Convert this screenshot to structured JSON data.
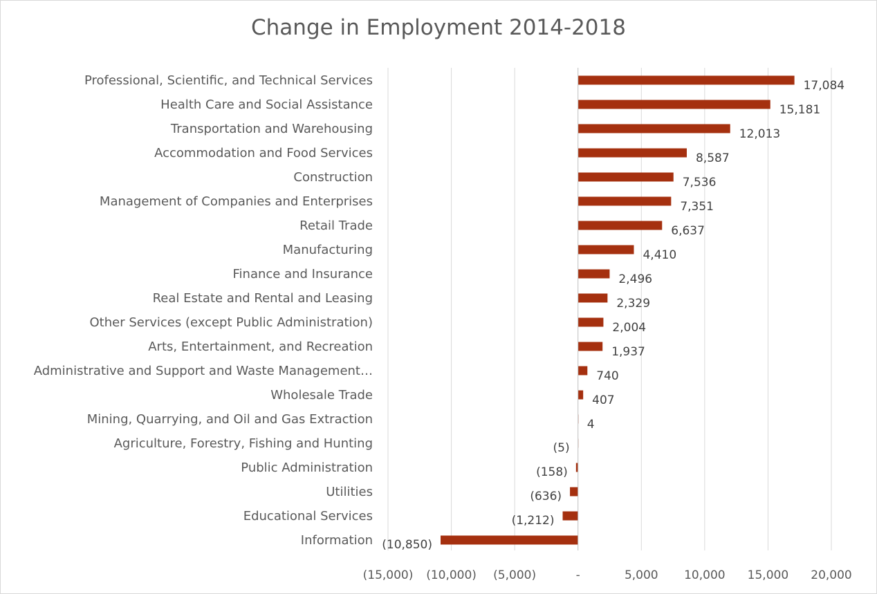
{
  "chart_data": {
    "type": "bar",
    "orientation": "horizontal",
    "title": "Change in Employment 2014-2018",
    "xlabel": "",
    "ylabel": "",
    "xlim": [
      -15000,
      20000
    ],
    "grid": true,
    "legend": "none",
    "bar_color": "#A5300F",
    "x_ticks": [
      {
        "value": -15000,
        "label": "(15,000)"
      },
      {
        "value": -10000,
        "label": "(10,000)"
      },
      {
        "value": -5000,
        "label": "(5,000)"
      },
      {
        "value": 0,
        "label": "-"
      },
      {
        "value": 5000,
        "label": "5,000"
      },
      {
        "value": 10000,
        "label": "10,000"
      },
      {
        "value": 15000,
        "label": "15,000"
      },
      {
        "value": 20000,
        "label": "20,000"
      }
    ],
    "categories": [
      "Professional, Scientific, and Technical Services",
      "Health Care and Social Assistance",
      "Transportation and Warehousing",
      "Accommodation and Food Services",
      "Construction",
      "Management of Companies and Enterprises",
      "Retail Trade",
      "Manufacturing",
      "Finance and Insurance",
      "Real Estate and Rental and Leasing",
      "Other Services (except Public Administration)",
      "Arts, Entertainment, and Recreation",
      "Administrative and Support and Waste Management…",
      "Wholesale Trade",
      "Mining, Quarrying, and Oil and Gas Extraction",
      "Agriculture, Forestry, Fishing and Hunting",
      "Public Administration",
      "Utilities",
      "Educational Services",
      "Information"
    ],
    "values": [
      17084,
      15181,
      12013,
      8587,
      7536,
      7351,
      6637,
      4410,
      2496,
      2329,
      2004,
      1937,
      740,
      407,
      4,
      -5,
      -158,
      -636,
      -1212,
      -10850
    ],
    "data_labels": [
      "17,084",
      "15,181",
      "12,013",
      "8,587",
      "7,536",
      "7,351",
      "6,637",
      "4,410",
      "2,496",
      "2,329",
      "2,004",
      "1,937",
      "740",
      "407",
      "4",
      "(5)",
      "(158)",
      "(636)",
      "(1,212)",
      "(10,850)"
    ]
  }
}
